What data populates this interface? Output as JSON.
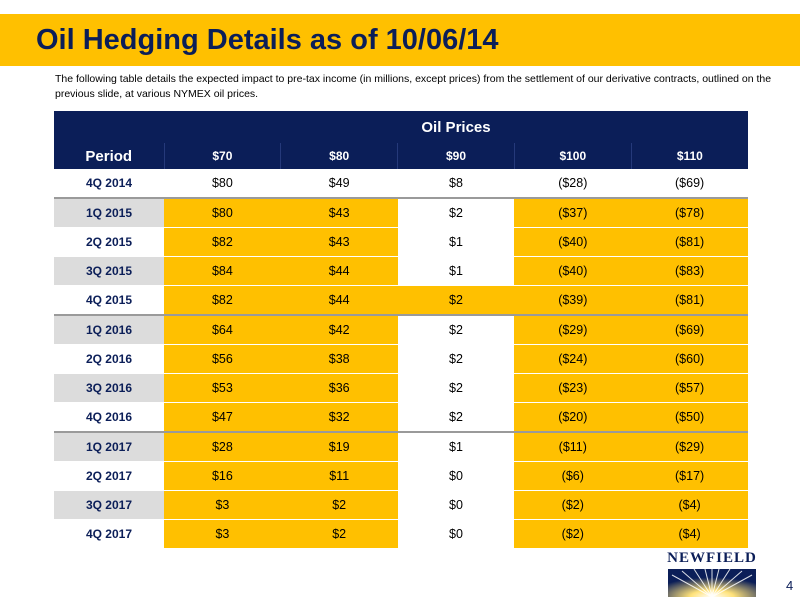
{
  "title": "Oil Hedging Details as of 10/06/14",
  "subtitle": "The following table details the expected impact to pre-tax income (in millions, except prices) from the settlement of our derivative contracts, outlined on the previous slide, at various NYMEX oil prices.",
  "table": {
    "group_header": "Oil Prices",
    "period_header": "Period",
    "price_headers": [
      "$70",
      "$80",
      "$90",
      "$100",
      "$110"
    ],
    "rows": [
      {
        "period": "4Q 2014",
        "values": [
          "$80",
          "$49",
          "$8",
          "($28)",
          "($69)"
        ]
      },
      {
        "period": "1Q 2015",
        "values": [
          "$80",
          "$43",
          "$2",
          "($37)",
          "($78)"
        ]
      },
      {
        "period": "2Q 2015",
        "values": [
          "$82",
          "$43",
          "$1",
          "($40)",
          "($81)"
        ]
      },
      {
        "period": "3Q 2015",
        "values": [
          "$84",
          "$44",
          "$1",
          "($40)",
          "($83)"
        ]
      },
      {
        "period": "4Q 2015",
        "values": [
          "$82",
          "$44",
          "$2",
          "($39)",
          "($81)"
        ]
      },
      {
        "period": "1Q 2016",
        "values": [
          "$64",
          "$42",
          "$2",
          "($29)",
          "($69)"
        ]
      },
      {
        "period": "2Q 2016",
        "values": [
          "$56",
          "$38",
          "$2",
          "($24)",
          "($60)"
        ]
      },
      {
        "period": "3Q 2016",
        "values": [
          "$53",
          "$36",
          "$2",
          "($23)",
          "($57)"
        ]
      },
      {
        "period": "4Q 2016",
        "values": [
          "$47",
          "$32",
          "$2",
          "($20)",
          "($50)"
        ]
      },
      {
        "period": "1Q 2017",
        "values": [
          "$28",
          "$19",
          "$1",
          "($11)",
          "($29)"
        ]
      },
      {
        "period": "2Q 2017",
        "values": [
          "$16",
          "$11",
          "$0",
          "($6)",
          "($17)"
        ]
      },
      {
        "period": "3Q 2017",
        "values": [
          "$3",
          "$2",
          "$0",
          "($2)",
          "($4)"
        ]
      },
      {
        "period": "4Q 2017",
        "values": [
          "$3",
          "$2",
          "$0",
          "($2)",
          "($4)"
        ]
      }
    ]
  },
  "logo": {
    "text": "NEWFIELD"
  },
  "page_number": "4",
  "colors": {
    "navy": "#0b1e58",
    "gold": "#ffc000",
    "gray": "#dcdcdc"
  }
}
